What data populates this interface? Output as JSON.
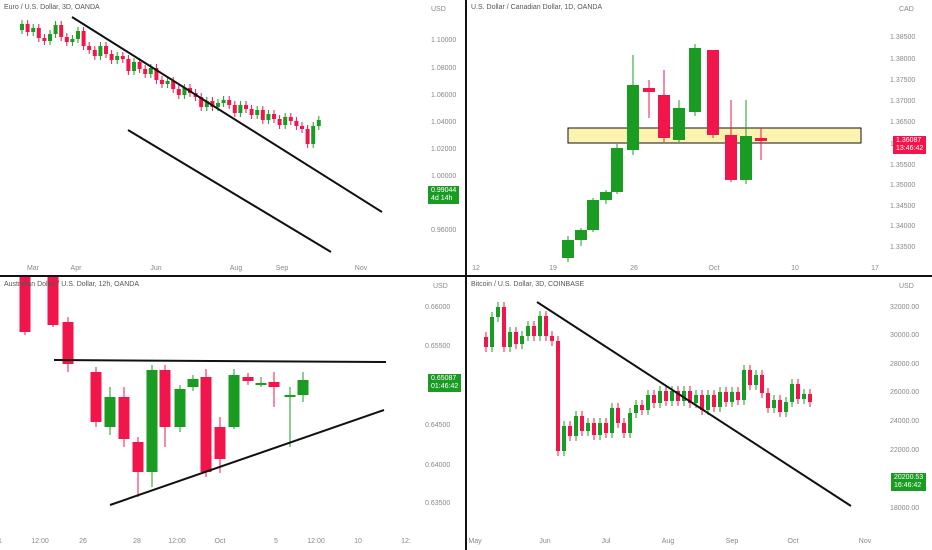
{
  "colors": {
    "up": "#1a9c22",
    "down": "#f0154a",
    "trend": "#111111",
    "zone": "#fdf3b0"
  },
  "panels": [
    {
      "key": "eurusd",
      "title": "Euro / U.S. Dollar, 3D, OANDA",
      "currency": "USD",
      "price_tag": {
        "price": "0.99044",
        "timer": "4d 14h",
        "color": "#1a9c22"
      },
      "x_ticks": [
        "Mar",
        "Apr",
        "Jun",
        "Aug",
        "Sep",
        "Nov"
      ],
      "y_ticks": [
        "1.10000",
        "1.08000",
        "1.06000",
        "1.04000",
        "1.02000",
        "1.00000",
        "0.96000"
      ]
    },
    {
      "key": "usdcad",
      "title": "U.S. Dollar / Canadian Dollar, 1D, OANDA",
      "currency": "CAD",
      "price_tag": {
        "price": "1.36087",
        "timer": "13:46:42",
        "color": "#f0154a"
      },
      "x_ticks": [
        "12",
        "19",
        "26",
        "Oct",
        "10",
        "17"
      ],
      "y_ticks": [
        "1.38500",
        "1.38000",
        "1.37500",
        "1.37000",
        "1.36500",
        "1.36000",
        "1.35500",
        "1.35000",
        "1.34500",
        "1.34000",
        "1.33500"
      ]
    },
    {
      "key": "audusd",
      "title": "Australian Dollar / U.S. Dollar, 12h, OANDA",
      "currency": "USD",
      "price_tag": {
        "price": "0.65087",
        "timer": "01:46:42",
        "color": "#1a9c22"
      },
      "x_ticks": [
        "1",
        "12:00",
        "26",
        "28",
        "12:00",
        "Oct",
        "5",
        "12:00",
        "10",
        "12:"
      ],
      "y_ticks": [
        "0.66000",
        "0.65500",
        "0.64500",
        "0.64000",
        "0.63500"
      ]
    },
    {
      "key": "btcusd",
      "title": "Bitcoin / U.S. Dollar, 3D, COINBASE",
      "currency": "USD",
      "price_tag": {
        "price": "20200.53",
        "timer": "16:46:42",
        "color": "#1a9c22"
      },
      "x_ticks": [
        "May",
        "Jun",
        "Jul",
        "Aug",
        "Sep",
        "Oct",
        "Nov"
      ],
      "y_ticks": [
        "32000.00",
        "30000.00",
        "28000.00",
        "26000.00",
        "24000.00",
        "22000.00",
        "18000.00"
      ]
    }
  ]
}
